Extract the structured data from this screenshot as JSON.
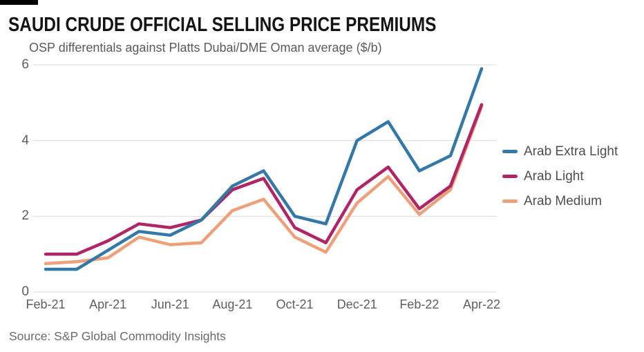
{
  "header": {
    "title": "SAUDI CRUDE OFFICIAL SELLING PRICE PREMIUMS",
    "subtitle": "OSP differentials against Platts Dubai/DME Oman average ($/b)"
  },
  "chart_data": {
    "type": "line",
    "x": [
      "Feb-21",
      "Mar-21",
      "Apr-21",
      "May-21",
      "Jun-21",
      "Jul-21",
      "Aug-21",
      "Sep-21",
      "Oct-21",
      "Nov-21",
      "Dec-21",
      "Jan-22",
      "Feb-22",
      "Mar-22",
      "Apr-22"
    ],
    "x_axis_labels_shown": [
      "Feb-21",
      "Apr-21",
      "Jun-21",
      "Aug-21",
      "Oct-21",
      "Dec-21",
      "Feb-22",
      "Apr-22"
    ],
    "series": [
      {
        "name": "Arab Extra Light",
        "color": "#3478A8",
        "values": [
          0.6,
          0.6,
          1.1,
          1.6,
          1.5,
          1.9,
          2.8,
          3.2,
          2.0,
          1.8,
          4.0,
          4.5,
          3.2,
          3.6,
          5.9
        ]
      },
      {
        "name": "Arab Light",
        "color": "#B02565",
        "values": [
          1.0,
          1.0,
          1.35,
          1.8,
          1.7,
          1.9,
          2.7,
          3.0,
          1.7,
          1.3,
          2.7,
          3.3,
          2.2,
          2.8,
          4.95
        ]
      },
      {
        "name": "Arab Medium",
        "color": "#EDA079",
        "values": [
          0.75,
          0.8,
          0.9,
          1.45,
          1.25,
          1.3,
          2.15,
          2.45,
          1.45,
          1.05,
          2.35,
          3.05,
          2.05,
          2.7,
          4.9
        ]
      }
    ],
    "ylim": [
      0,
      6
    ],
    "y_ticks": [
      0,
      2,
      4,
      6
    ],
    "grid": "horizontal",
    "legend_position": "right",
    "title": "SAUDI CRUDE OFFICIAL SELLING PRICE PREMIUMS",
    "xlabel": "",
    "ylabel": "OSP differentials against Platts Dubai/DME Oman average ($/b)"
  },
  "source": "Source: S&P Global Commodity Insights",
  "colors": {
    "brand_bar": "#000000",
    "title_text": "#141414",
    "subtitle_text": "#595A5C",
    "axis_text": "#5D5E60",
    "legend_text": "#4D4E50",
    "source_text": "#6A6B6D",
    "gridline": "#DBDBDB",
    "background": "#FFFFFF"
  }
}
